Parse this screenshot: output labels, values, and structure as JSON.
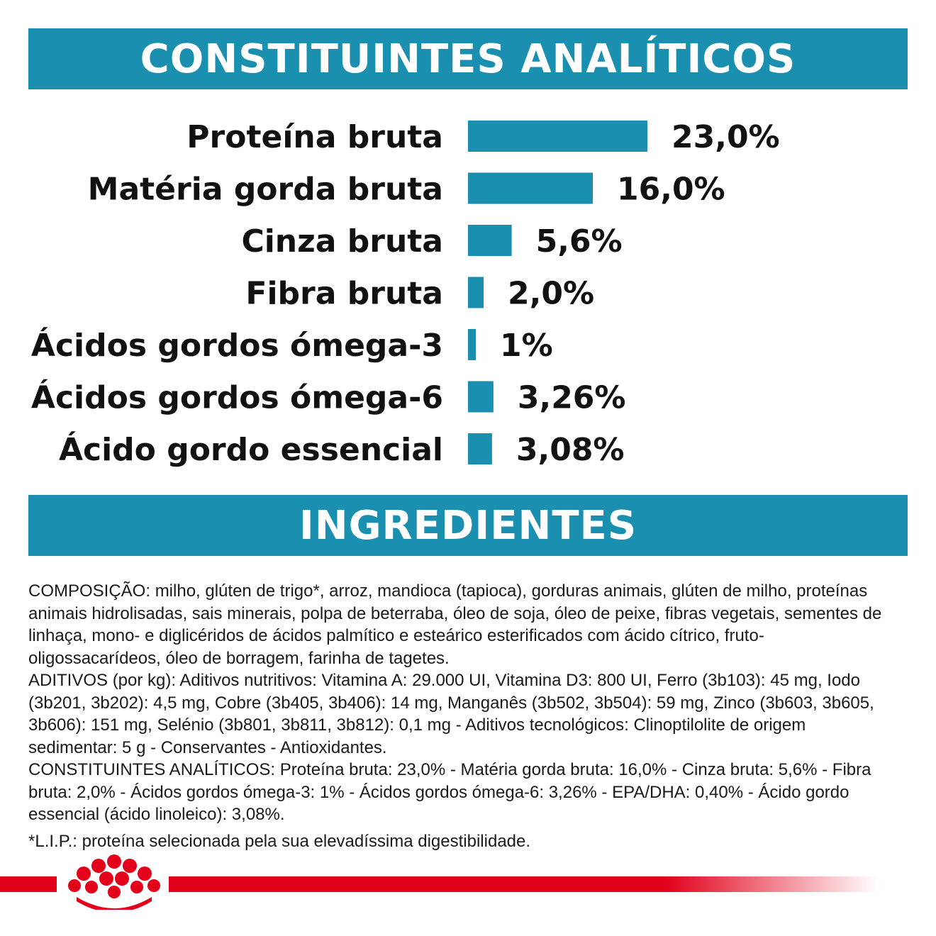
{
  "analytic_heading": "CONSTITUINTES ANALÍTICOS",
  "ingredients_heading": "INGREDIENTES",
  "colors": {
    "banner": "#1a8fb0",
    "bar": "#1a8fb0",
    "brand_red": "#e2001a",
    "text": "#111111"
  },
  "chart_data": {
    "type": "bar",
    "orientation": "horizontal",
    "title": "CONSTITUINTES ANALÍTICOS",
    "xlabel": "",
    "ylabel": "",
    "grid": false,
    "legend": "none",
    "xlim": [
      0,
      23
    ],
    "unit": "%",
    "categories": [
      "Proteína bruta",
      "Matéria gorda bruta",
      "Cinza bruta",
      "Fibra bruta",
      "Ácidos gordos ómega-3",
      "Ácidos gordos ómega-6",
      "Ácido gordo essencial"
    ],
    "values": [
      23.0,
      16.0,
      5.6,
      2.0,
      1,
      3.26,
      3.08
    ],
    "labels": [
      "23,0%",
      "16,0%",
      "5,6%",
      "2,0%",
      "1%",
      "3,26%",
      "3,08%"
    ]
  },
  "ingredients": {
    "composition": "COMPOSIÇÃO: milho, glúten de trigo*, arroz, mandioca (tapioca), gorduras animais, glúten de milho, proteínas animais hidrolisadas, sais minerais, polpa de beterraba, óleo de soja, óleo de peixe, fibras vegetais, sementes de linhaça, mono- e diglicéridos de ácidos palmítico e esteárico esterificados com ácido cítrico, fruto-oligossacarídeos, óleo de borragem, farinha de tagetes.",
    "additives": "ADITIVOS (por kg): Aditivos nutritivos: Vitamina A: 29.000 UI, Vitamina D3: 800 UI, Ferro (3b103): 45 mg, Iodo (3b201, 3b202): 4,5 mg, Cobre (3b405, 3b406): 14 mg, Manganês (3b502, 3b504): 59 mg, Zinco (3b603, 3b605, 3b606): 151 mg, Selénio (3b801, 3b811, 3b812): 0,1 mg - Aditivos tecnológicos: Clinoptilolite de origem sedimentar: 5 g - Conservantes - Antioxidantes.",
    "analytic": "CONSTITUINTES ANALÍTICOS: Proteína bruta: 23,0% - Matéria gorda bruta: 16,0% - Cinza bruta: 5,6% - Fibra bruta: 2,0% - Ácidos gordos ómega-3: 1% - Ácidos gordos ómega-6: 3,26% - EPA/DHA: 0,40% - Ácido gordo essencial (ácido linoleico): 3,08%.",
    "footnote": "*L.I.P.: proteína selecionada pela sua elevadíssima digestibilidade."
  },
  "brand": {
    "logo_icon": "royal-canin-crown-icon"
  }
}
